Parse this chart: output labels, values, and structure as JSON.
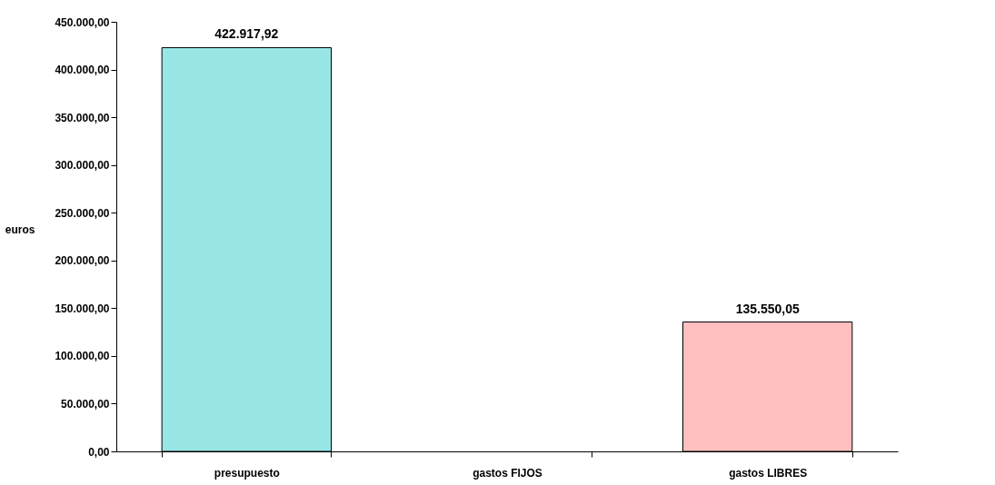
{
  "chart_data": {
    "type": "bar",
    "ylabel": "euros",
    "categories": [
      "presupuesto",
      "gastos FIJOS",
      "gastos LIBRES"
    ],
    "values": [
      422917.92,
      null,
      135550.05
    ],
    "colors": [
      "#99e6e6",
      "#ffffff",
      "#ffbfbf"
    ],
    "value_labels": [
      "422.917,92",
      null,
      "135.550,05"
    ],
    "ylim": [
      0,
      450000
    ],
    "yticks": [
      {
        "value": 0,
        "label": "0,00"
      },
      {
        "value": 50000,
        "label": "50.000,00"
      },
      {
        "value": 100000,
        "label": "100.000,00"
      },
      {
        "value": 150000,
        "label": "150.000,00"
      },
      {
        "value": 200000,
        "label": "200.000,00"
      },
      {
        "value": 250000,
        "label": "250.000,00"
      },
      {
        "value": 300000,
        "label": "300.000,00"
      },
      {
        "value": 350000,
        "label": "350.000,00"
      },
      {
        "value": 400000,
        "label": "400.000,00"
      },
      {
        "value": 450000,
        "label": "450.000,00"
      }
    ],
    "grid": false
  }
}
